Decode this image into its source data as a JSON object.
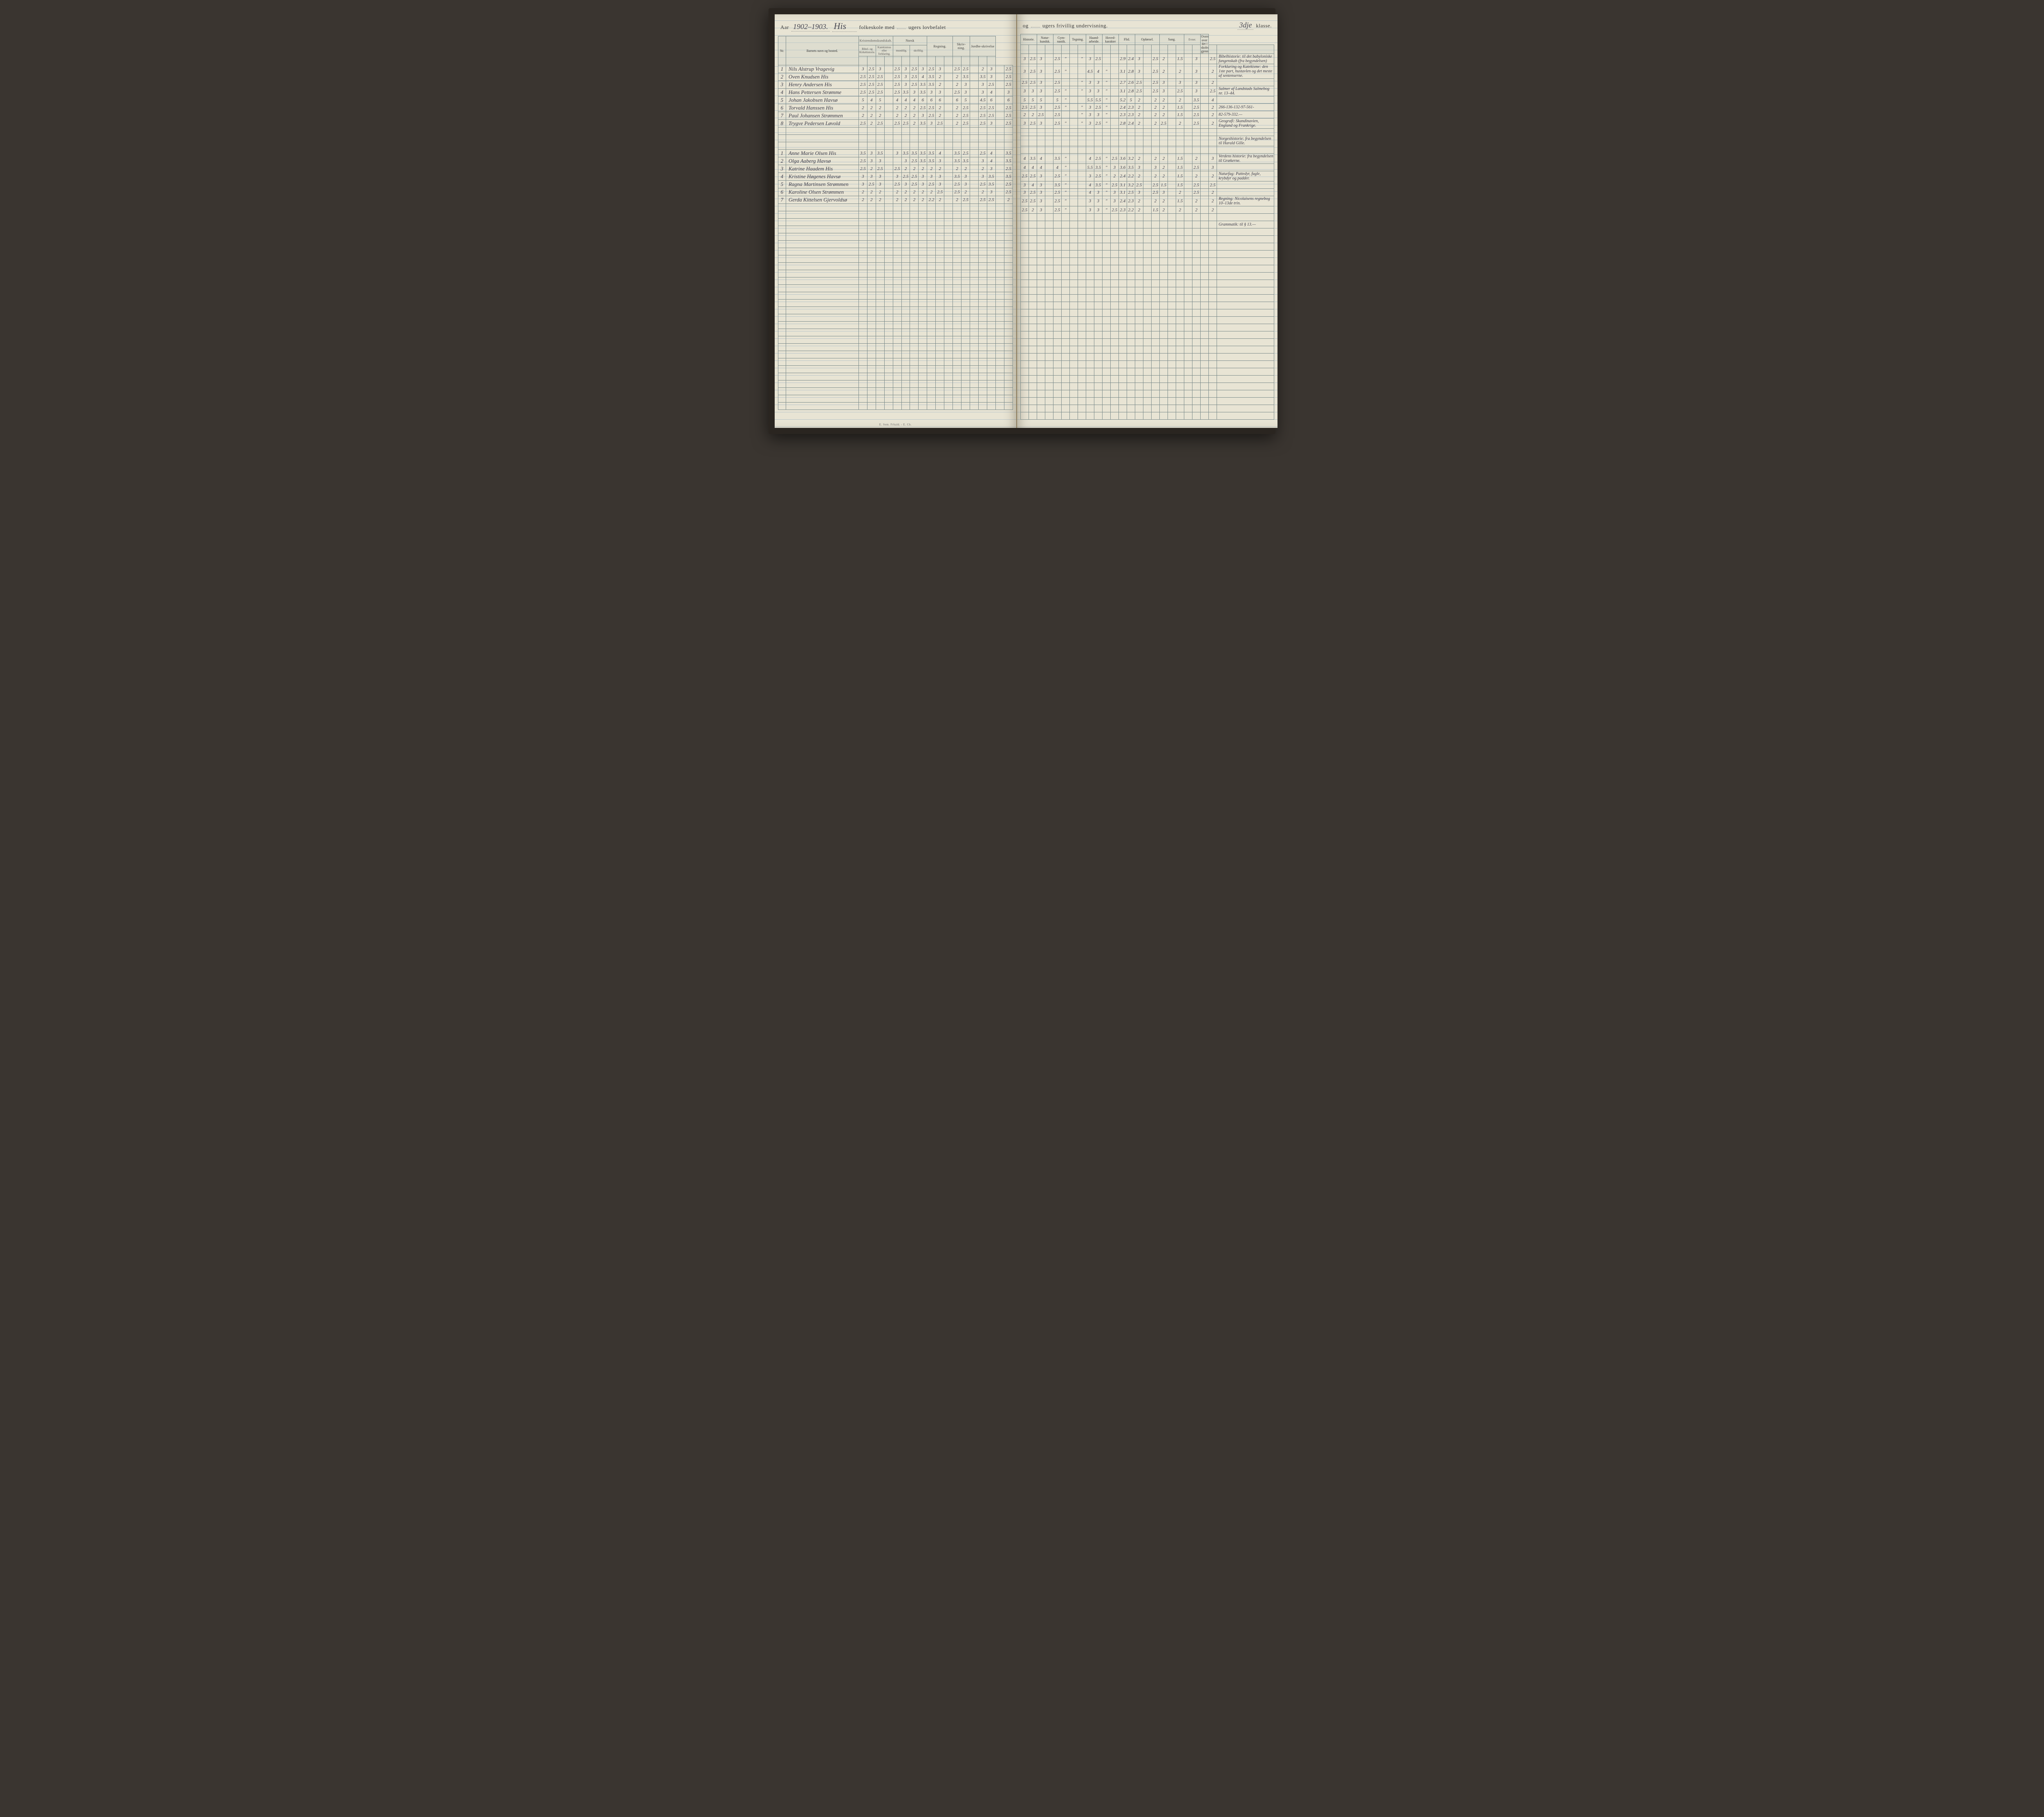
{
  "colors": {
    "page_bg": "#e8e4d4",
    "rule_line": "#b8c4c8",
    "ink": "#3a3a48",
    "border": "#7a8a8a",
    "book_frame": "#2a2520"
  },
  "header_left": {
    "aar_label": "Aar",
    "aar_value": "1902–1903.",
    "school": "His",
    "text1": "folkeskole med",
    "weeks1": "",
    "text2": "ugers lovbefalet"
  },
  "header_right": {
    "text1": "og",
    "weeks2": "",
    "text2": "ugers frivillig undervisning.",
    "klasse_value": "3dje",
    "klasse_label": "klasse."
  },
  "columns_left": {
    "nr": "Nr.",
    "name": "Barnets navn og bosted.",
    "kristendom": "Kristendomskundskab.",
    "bibel": "Bibel- og Kirkehistorie.",
    "katekismus": "Katekismus eller forklaring.",
    "norsk": "Norsk",
    "mundtlig": "mundtlig.",
    "skriftlig": "skriftlig.",
    "regning": "Regning.",
    "skrivning": "Skriv-ning.",
    "jordbeskrivelse": "Jordbe-skrivelse"
  },
  "columns_right": {
    "historie": "Historie.",
    "naturkundsk": "Natur-kundsk.",
    "gymnastik": "Gym-nastik.",
    "tegning": "Tegning.",
    "haandarbeide": "Haand-arbeide.",
    "hovedkarakter": "Hoved-karakter",
    "flid": "Flid.",
    "opforsel": "Opførsel.",
    "sang": "Sang.",
    "evner": "Evner.",
    "oversigt": "Oversigt over det i skoleaaret gjennemgaaede."
  },
  "boys": [
    {
      "nr": "1",
      "name": "Nils Alstrup Vragevig",
      "l": [
        "3",
        "2.5",
        "3",
        "",
        "2.5",
        "3",
        "2.5",
        "3",
        "2.5",
        "3",
        "",
        "2.5",
        "2.5",
        "",
        "2",
        "3",
        "",
        "2.5"
      ],
      "r": [
        "3",
        "2.5",
        "3",
        "",
        "2.5",
        "\"",
        "",
        "\"",
        "3",
        "2.5",
        "",
        "",
        "2.9",
        "2.4",
        "3",
        "",
        "2.5",
        "2",
        "",
        "1.5",
        "",
        "3",
        "",
        "2.5"
      ],
      "note": "Bibelhistorie: til det babyloniske fangenskab (fra begyndelsen)"
    },
    {
      "nr": "2",
      "name": "Oven Knudsen His",
      "l": [
        "2.5",
        "2.5",
        "2.5",
        "",
        "2.5",
        "3",
        "2.5",
        "4",
        "3.5",
        "2",
        "",
        "2",
        "3.5",
        "",
        "3.5",
        "3",
        "",
        "2.5"
      ],
      "r": [
        "3",
        "2.5",
        "3",
        "",
        "2.5",
        "\"",
        "",
        "",
        "4.5",
        "4",
        "\"",
        "",
        "3.1",
        "2.8",
        "3",
        "",
        "2.5",
        "2",
        "",
        "2",
        "",
        "3",
        "",
        "2"
      ],
      "note": "Forklaring og Katekisme: den 1ste part, hustavlen og det meste af sentenserne."
    },
    {
      "nr": "3",
      "name": "Henry Andersen His",
      "l": [
        "2.5",
        "2.5",
        "2.5",
        "",
        "2.5",
        "3",
        "2.5",
        "3.5",
        "3.5",
        "2",
        "",
        "2",
        "3",
        "",
        "3",
        "2.5",
        "",
        "2.5"
      ],
      "r": [
        "2.5",
        "2.5",
        "3",
        "",
        "2.5",
        "",
        "",
        "\"",
        "3",
        "3",
        "\"",
        "",
        "2.7",
        "2.6",
        "2.5",
        "",
        "2.5",
        "3",
        "",
        "3",
        "",
        "3",
        "",
        "2"
      ],
      "note": ""
    },
    {
      "nr": "4",
      "name": "Hans Pettersen Strømme",
      "l": [
        "2.5",
        "2.5",
        "2.5",
        "",
        "2.5",
        "3.5",
        "3",
        "3.5",
        "3",
        "3",
        "",
        "2.5",
        "3",
        "",
        "3",
        "4",
        "",
        "3"
      ],
      "r": [
        "3",
        "3",
        "3",
        "",
        "2.5",
        "\"",
        "",
        "\"",
        "3",
        "3",
        "\"",
        "",
        "3.1",
        "2.8",
        "2.5",
        "",
        "2.5",
        "3",
        "",
        "2.5",
        "",
        "3",
        "",
        "2.5"
      ],
      "note": "Salmer af Landstads Salmebog nr. 13–44."
    },
    {
      "nr": "5",
      "name": "Johan Jakobsen Havsø",
      "l": [
        "5",
        "4",
        "5",
        "",
        "4",
        "4",
        "4",
        "6",
        "6",
        "6",
        "",
        "6",
        "5",
        "",
        "4.5",
        "6",
        "",
        "6"
      ],
      "r": [
        "5",
        "5",
        "5",
        "",
        "5",
        "\"",
        "",
        "",
        "5.5",
        "5.5",
        "\"",
        "",
        "5.2",
        "5",
        "2",
        "",
        "2",
        "2",
        "",
        "2",
        "",
        "3.5",
        "",
        "4"
      ],
      "note": ""
    },
    {
      "nr": "6",
      "name": "Torvald Hanssen His",
      "l": [
        "2",
        "2",
        "2",
        "",
        "2",
        "2",
        "2",
        "2.5",
        "2.5",
        "2",
        "",
        "2",
        "2.5",
        "",
        "2.5",
        "2.5",
        "",
        "2.5"
      ],
      "r": [
        "2.5",
        "2.5",
        "3",
        "",
        "2.5",
        "\"",
        "",
        "\"",
        "3",
        "2.5",
        "\"",
        "",
        "2.4",
        "2.3",
        "2",
        "",
        "2",
        "2",
        "",
        "1.5",
        "",
        "2.5",
        "",
        "2"
      ],
      "note": "266-136-132-97-561-"
    },
    {
      "nr": "7",
      "name": "Paul Johansen Strømmen",
      "l": [
        "2",
        "2",
        "2",
        "",
        "2",
        "2",
        "2",
        "3",
        "2.5",
        "2",
        "",
        "2",
        "2.5",
        "",
        "2.5",
        "2.5",
        "",
        "2.5"
      ],
      "r": [
        "2",
        "2",
        "2.5",
        "",
        "2.5",
        "",
        "",
        "\"",
        "3",
        "3",
        "\"",
        "",
        "2.3",
        "2.3",
        "2",
        "",
        "2",
        "2",
        "",
        "1.5",
        "",
        "2.5",
        "",
        "2"
      ],
      "note": "82-579-332.—"
    },
    {
      "nr": "8",
      "name": "Trygve Pedersen Løvold",
      "l": [
        "2.5",
        "2",
        "2.5",
        "",
        "2.5",
        "2.5",
        "2",
        "3.5",
        "3",
        "2.5",
        "",
        "2",
        "2.5",
        "",
        "2.5",
        "3",
        "",
        "2.5"
      ],
      "r": [
        "3",
        "2.5",
        "3",
        "",
        "2.5",
        "\"",
        "",
        "\"",
        "3",
        "2.5",
        "\"",
        "",
        "2.8",
        "2.4",
        "2",
        "",
        "2",
        "2.5",
        "",
        "2",
        "",
        "2.5",
        "",
        "2"
      ],
      "note": "Geografi: Skandinavien, England og Frankrige."
    }
  ],
  "gap_note": "Norgeshistorie: fra begyndelsen til Harald Gille.",
  "girls": [
    {
      "nr": "1",
      "name": "Anne Marie Olsen His",
      "l": [
        "3.5",
        "3",
        "3.5",
        "",
        "3",
        "3.5",
        "3.5",
        "3.5",
        "3.5",
        "4",
        "",
        "3.5",
        "2.5",
        "",
        "2.5",
        "4",
        "",
        "3.5"
      ],
      "r": [
        "4",
        "3.5",
        "4",
        "",
        "3.5",
        "\"",
        "",
        "",
        "4",
        "2.5",
        "\"",
        "2.5",
        "3.6",
        "3.2",
        "2",
        "",
        "2",
        "2",
        "",
        "1.5",
        "",
        "2",
        "",
        "3"
      ],
      "note": "Verdens historie: fra begyndelsen til Grækerne."
    },
    {
      "nr": "2",
      "name": "Olga Aaberg Havsø",
      "l": [
        "2.5",
        "3",
        "3",
        "",
        "",
        "3",
        "2.5",
        "3.5",
        "3.5",
        "3",
        "",
        "3.5",
        "3.5",
        "",
        "3",
        "4",
        "",
        "3.5"
      ],
      "r": [
        "4",
        "4",
        "4",
        "",
        "4",
        "\"",
        "",
        "",
        "5.5",
        "3.5",
        "\"",
        "3",
        "3.6",
        "3.5",
        "3",
        "",
        "3",
        "2",
        "",
        "1.5",
        "",
        "2.5",
        "",
        "3"
      ],
      "note": ""
    },
    {
      "nr": "3",
      "name": "Katrine Haadem His",
      "l": [
        "2.5",
        "2",
        "2.5",
        "",
        "2.5",
        "2",
        "2",
        "2",
        "2",
        "2",
        "",
        "2",
        "2",
        "",
        "2",
        "3",
        "",
        "2.5"
      ],
      "r": [
        "2.5",
        "2.5",
        "3",
        "",
        "2.5",
        "\"",
        "",
        "",
        "3",
        "2.5",
        "\"",
        "2",
        "2.4",
        "2.2",
        "2",
        "",
        "2",
        "2",
        "",
        "1.5",
        "",
        "2",
        "",
        "2"
      ],
      "note": "Naturfag: Pattedyr, fugle, krybdyr og padder."
    },
    {
      "nr": "4",
      "name": "Kristine Høgenes Havsø",
      "l": [
        "3",
        "3",
        "3",
        "",
        "3",
        "2.5",
        "2.5",
        "3",
        "3",
        "3",
        "",
        "3.5",
        "3",
        "",
        "3",
        "3.5",
        "",
        "3.5"
      ],
      "r": [
        "3",
        "4",
        "3",
        "",
        "3.5",
        "\"",
        "",
        "",
        "4",
        "3.5",
        "\"",
        "2.5",
        "3.1",
        "3.2",
        "2.5",
        "",
        "2.5",
        "1.5",
        "",
        "1.5",
        "",
        "2.5",
        "",
        "2.5"
      ],
      "note": ""
    },
    {
      "nr": "5",
      "name": "Ragna Martinsen Strømmen",
      "l": [
        "3",
        "2.5",
        "3",
        "",
        "2.5",
        "3",
        "2.5",
        "3",
        "2.5",
        "3",
        "",
        "2.5",
        "3",
        "",
        "2.5",
        "3.5",
        "",
        "2.5"
      ],
      "r": [
        "3",
        "2.5",
        "3",
        "",
        "2.5",
        "\"",
        "",
        "",
        "4",
        "3",
        "\"",
        "3",
        "3.1",
        "2.5",
        "3",
        "",
        "2.5",
        "3",
        "",
        "2",
        "",
        "2.5",
        "",
        "2"
      ],
      "note": ""
    },
    {
      "nr": "6",
      "name": "Karoline Olsen Strømmen",
      "l": [
        "2",
        "2",
        "2",
        "",
        "2",
        "2",
        "2",
        "2",
        "2",
        "2.5",
        "",
        "2.5",
        "2",
        "",
        "2",
        "3",
        "",
        "2.5"
      ],
      "r": [
        "2.5",
        "2.5",
        "3",
        "",
        "2.5",
        "\"",
        "",
        "",
        "3",
        "3",
        "\"",
        "3",
        "2.4",
        "2.3",
        "2",
        "",
        "2",
        "2",
        "",
        "1.5",
        "",
        "2",
        "",
        "2"
      ],
      "note": "Regning: Nicolaisens regnebog 10–13de trin."
    },
    {
      "nr": "7",
      "name": "Gerda Kittelsen Gjervoldsø",
      "l": [
        "2",
        "2",
        "2",
        "",
        "2",
        "2",
        "2",
        "2",
        "2.2",
        "2",
        "",
        "2",
        "2.5",
        "",
        "2.5",
        "2.5",
        "",
        "2"
      ],
      "r": [
        "2.5",
        "2",
        "3",
        "",
        "2.5",
        "\"",
        "",
        "",
        "3",
        "3",
        "\"",
        "2.5",
        "2.3",
        "2.2",
        "2",
        "",
        "1.5",
        "2",
        "",
        "2",
        "",
        "2",
        "",
        "2"
      ],
      "note": ""
    }
  ],
  "tail_note": "Grammatik: til § 13.—",
  "imprint": "E. Sem. Frhald. - E. Cb."
}
